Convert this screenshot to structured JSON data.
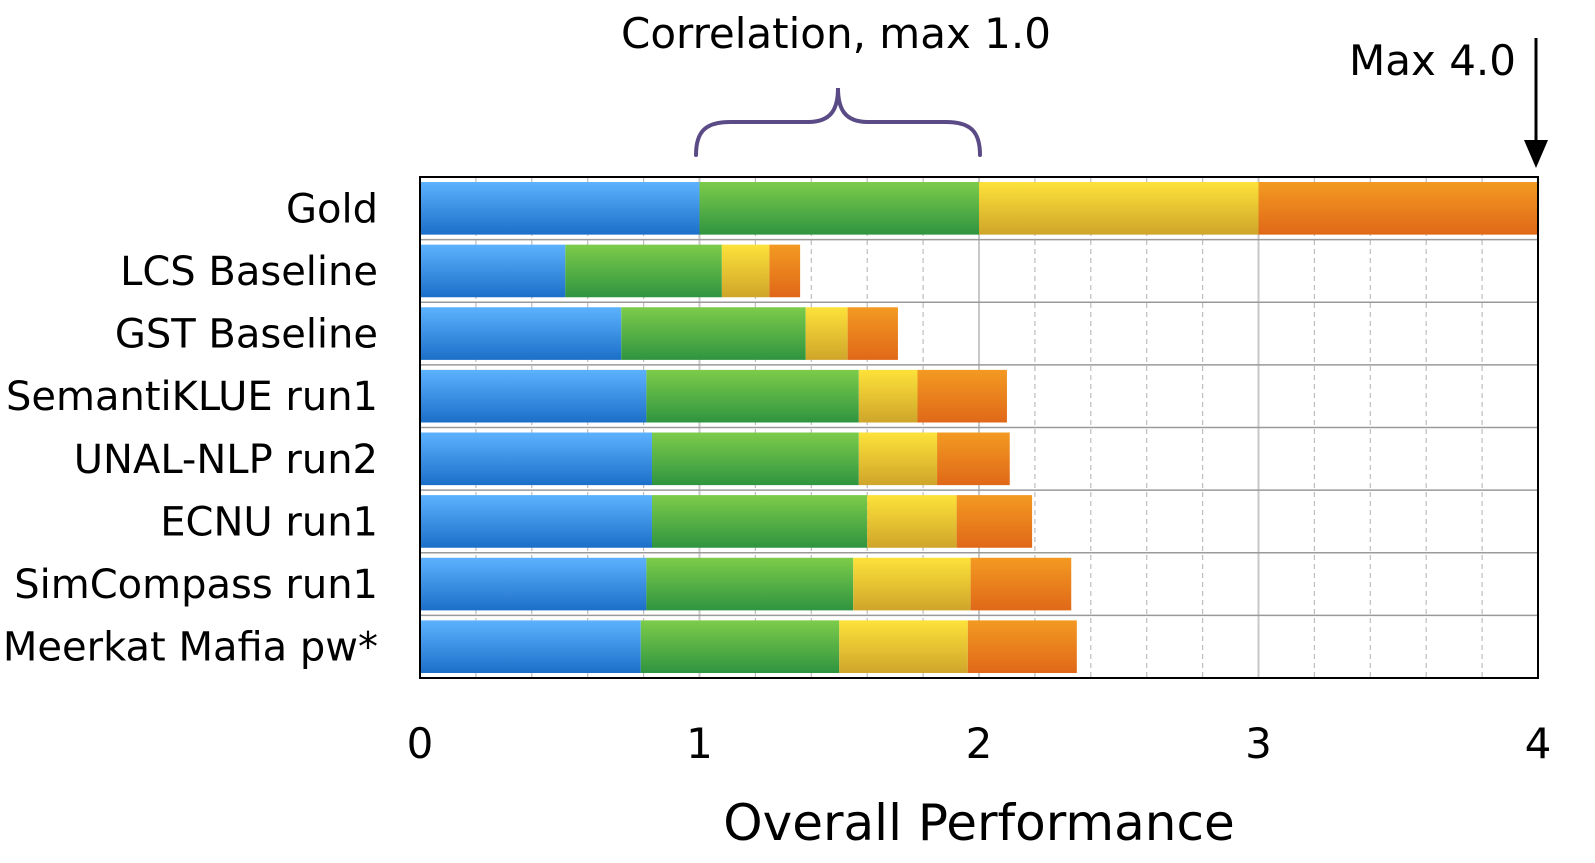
{
  "chart_data": {
    "type": "bar",
    "orientation": "horizontal",
    "stacked": true,
    "categories": [
      "Gold",
      "LCS Baseline",
      "GST Baseline",
      "SemantiKLUE run1",
      "UNAL-NLP run2",
      "ECNU run1",
      "SimCompass run1",
      "Meerkat Mafia pw*"
    ],
    "series": [
      {
        "values": [
          1.0,
          0.52,
          0.72,
          0.81,
          0.83,
          0.83,
          0.81,
          0.79
        ]
      },
      {
        "values": [
          1.0,
          0.56,
          0.66,
          0.76,
          0.74,
          0.77,
          0.74,
          0.71
        ]
      },
      {
        "values": [
          1.0,
          0.17,
          0.15,
          0.21,
          0.28,
          0.32,
          0.42,
          0.46
        ]
      },
      {
        "values": [
          1.0,
          0.11,
          0.18,
          0.32,
          0.26,
          0.27,
          0.36,
          0.39
        ]
      }
    ],
    "series_colors": [
      "#2f86e0",
      "#4caf3c",
      "#f2cd2a",
      "#ea7a1a"
    ],
    "xlabel": "Overall Performance",
    "xlim": [
      0,
      4
    ],
    "xticks": [
      "0",
      "1",
      "2",
      "3",
      "4"
    ],
    "grid": "vertical dashed",
    "annotations": {
      "brace_label": "Correlation, max 1.0",
      "max_label": "Max 4.0"
    }
  }
}
